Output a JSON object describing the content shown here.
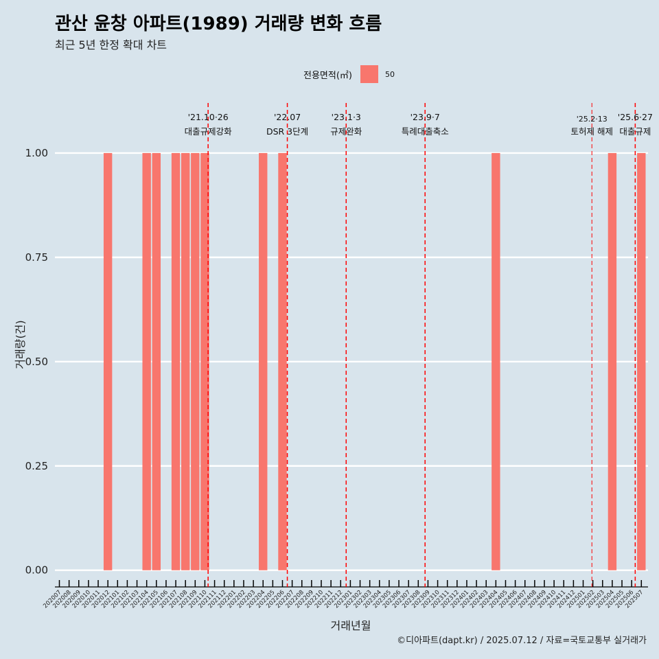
{
  "title": "관산 윤창 아파트(1989) 거래량 변화 흐름",
  "subtitle": "최근 5년 한정 확대 차트",
  "caption": "©디아파트(dapt.kr) / 2025.07.12 / 자료=국토교통부 실거래가",
  "legend": {
    "title": "전용면적(㎡)",
    "label": "50"
  },
  "colors": {
    "background": "#d8e4ec",
    "bar": "#f8766d",
    "event_line": "#ff0000",
    "grid": "#ffffff",
    "axis": "#000000"
  },
  "chart_data": {
    "type": "bar",
    "xlabel": "거래년월",
    "ylabel": "거래량(건)",
    "ylim": [
      -0.04,
      1.12
    ],
    "yticks": [
      "0.00",
      "0.25",
      "0.50",
      "0.75",
      "1.00"
    ],
    "grid": true,
    "legend_position": "top",
    "categories": [
      "202007",
      "202008",
      "202009",
      "202010",
      "202011",
      "202012",
      "202101",
      "202102",
      "202103",
      "202104",
      "202105",
      "202106",
      "202107",
      "202108",
      "202109",
      "202110",
      "202111",
      "202112",
      "202201",
      "202202",
      "202203",
      "202204",
      "202205",
      "202206",
      "202207",
      "202208",
      "202209",
      "202210",
      "202211",
      "202212",
      "202301",
      "202302",
      "202303",
      "202304",
      "202305",
      "202306",
      "202307",
      "202308",
      "202309",
      "202310",
      "202311",
      "202312",
      "202401",
      "202402",
      "202403",
      "202404",
      "202405",
      "202406",
      "202407",
      "202408",
      "202409",
      "202410",
      "202411",
      "202412",
      "202501",
      "202502",
      "202503",
      "202504",
      "202505",
      "202506",
      "202507"
    ],
    "series": [
      {
        "name": "50",
        "values": [
          0,
          0,
          0,
          0,
          0,
          1,
          0,
          0,
          0,
          1,
          1,
          0,
          1,
          1,
          1,
          1,
          0,
          0,
          0,
          0,
          0,
          1,
          0,
          1,
          0,
          0,
          0,
          0,
          0,
          0,
          0,
          0,
          0,
          0,
          0,
          0,
          0,
          0,
          0,
          0,
          0,
          0,
          0,
          0,
          0,
          1,
          0,
          0,
          0,
          0,
          0,
          0,
          0,
          0,
          0,
          0,
          0,
          1,
          0,
          0,
          1
        ]
      }
    ],
    "events": [
      {
        "month": "2021-10-26",
        "label_date": "'21.10·26",
        "label_text": "대출규제강화",
        "label_row": 1
      },
      {
        "month": "2022-07",
        "label_date": "'22.07",
        "label_text": "DSR 3단계",
        "label_row": 1
      },
      {
        "month": "2023-01-03",
        "label_date": "'23.1·3",
        "label_text": "규제완화",
        "label_row": 1
      },
      {
        "month": "2023-09-07",
        "label_date": "'23.9·7",
        "label_text": "특례대출축소",
        "label_row": 1
      },
      {
        "month": "2025-02-13",
        "label_date": "'25.2·13",
        "label_text": "토허제 해제",
        "label_row": 2
      },
      {
        "month": "2025-06-27",
        "label_date": "'25.6·27",
        "label_text": "대출규제",
        "label_row": 1
      }
    ]
  }
}
